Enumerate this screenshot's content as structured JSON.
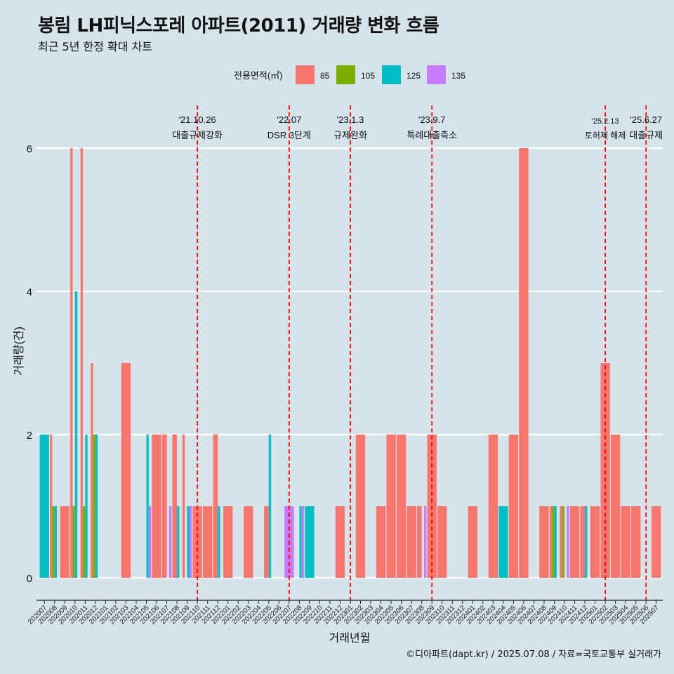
{
  "title": "봉림 LH피닉스포레 아파트(2011) 거래량 변화 흐름",
  "subtitle": "최근 5년 한정 확대 차트",
  "caption": "©디아파트(dapt.kr) / 2025.07.08 / 자료=국토교통부 실거래가",
  "colors": {
    "background": "#d6e3ea",
    "grid": "#ffffff",
    "event_line": "#ff0000",
    "85": "#f8766d",
    "105": "#7cae00",
    "125": "#00bfc4",
    "135": "#c77cff"
  },
  "chart_data": {
    "type": "bar",
    "title": "봉림 LH피닉스포레 아파트(2011) 거래량 변화 흐름",
    "xlabel": "거래년월",
    "ylabel": "거래량(건)",
    "ylim": [
      0,
      6
    ],
    "yticks": [
      0,
      2,
      4,
      6
    ],
    "legend_title": "전용면적(㎡)",
    "legend_position": "top",
    "series": [
      {
        "name": "85",
        "color": "#f8766d"
      },
      {
        "name": "105",
        "color": "#7cae00"
      },
      {
        "name": "125",
        "color": "#00bfc4"
      },
      {
        "name": "135",
        "color": "#c77cff"
      }
    ],
    "categories": [
      "202007",
      "202008",
      "202009",
      "202010",
      "202011",
      "202012",
      "202101",
      "202102",
      "202103",
      "202104",
      "202105",
      "202106",
      "202107",
      "202108",
      "202109",
      "202110",
      "202111",
      "202112",
      "202201",
      "202202",
      "202203",
      "202204",
      "202205",
      "202206",
      "202207",
      "202208",
      "202209",
      "202210",
      "202211",
      "202212",
      "202301",
      "202302",
      "202303",
      "202304",
      "202305",
      "202306",
      "202307",
      "202308",
      "202309",
      "202310",
      "202311",
      "202312",
      "202401",
      "202402",
      "202403",
      "202404",
      "202405",
      "202406",
      "202407",
      "202408",
      "202409",
      "202410",
      "202411",
      "202412",
      "202501",
      "202502",
      "202503",
      "202504",
      "202505",
      "202506",
      "202507"
    ],
    "bars": [
      {
        "month": "202007",
        "segments": [
          {
            "area": "125",
            "value": 2
          }
        ]
      },
      {
        "month": "202008",
        "segments": [
          {
            "area": "85",
            "value": 2
          },
          {
            "area": "105",
            "value": 1
          },
          {
            "area": "125",
            "value": 1
          }
        ]
      },
      {
        "month": "202009",
        "segments": [
          {
            "area": "85",
            "value": 1
          }
        ]
      },
      {
        "month": "202010",
        "segments": [
          {
            "area": "85",
            "value": 6
          },
          {
            "area": "105",
            "value": 1
          },
          {
            "area": "125",
            "value": 4
          }
        ]
      },
      {
        "month": "202011",
        "segments": [
          {
            "area": "85",
            "value": 6
          },
          {
            "area": "105",
            "value": 1
          },
          {
            "area": "125",
            "value": 2
          }
        ]
      },
      {
        "month": "202012",
        "segments": [
          {
            "area": "85",
            "value": 3
          },
          {
            "area": "105",
            "value": 2
          },
          {
            "area": "125",
            "value": 2
          }
        ]
      },
      {
        "month": "202103",
        "segments": [
          {
            "area": "85",
            "value": 3
          }
        ]
      },
      {
        "month": "202105",
        "segments": [
          {
            "area": "125",
            "value": 2
          },
          {
            "area": "135",
            "value": 1
          }
        ]
      },
      {
        "month": "202106",
        "segments": [
          {
            "area": "85",
            "value": 2
          }
        ]
      },
      {
        "month": "202107",
        "segments": [
          {
            "area": "85",
            "value": 2
          },
          {
            "area": "135",
            "value": 1
          }
        ]
      },
      {
        "month": "202108",
        "segments": [
          {
            "area": "85",
            "value": 2
          },
          {
            "area": "125",
            "value": 1
          }
        ]
      },
      {
        "month": "202109",
        "segments": [
          {
            "area": "85",
            "value": 2
          },
          {
            "area": "125",
            "value": 1
          },
          {
            "area": "135",
            "value": 1
          }
        ]
      },
      {
        "month": "202110",
        "segments": [
          {
            "area": "85",
            "value": 1
          }
        ]
      },
      {
        "month": "202111",
        "segments": [
          {
            "area": "85",
            "value": 1
          }
        ]
      },
      {
        "month": "202112",
        "segments": [
          {
            "area": "85",
            "value": 2
          },
          {
            "area": "125",
            "value": 1
          }
        ]
      },
      {
        "month": "202201",
        "segments": [
          {
            "area": "85",
            "value": 1
          }
        ]
      },
      {
        "month": "202203",
        "segments": [
          {
            "area": "85",
            "value": 1
          }
        ]
      },
      {
        "month": "202205",
        "segments": [
          {
            "area": "85",
            "value": 1
          },
          {
            "area": "125",
            "value": 2
          }
        ]
      },
      {
        "month": "202207",
        "segments": [
          {
            "area": "135",
            "value": 1
          }
        ]
      },
      {
        "month": "202208",
        "segments": [
          {
            "area": "125",
            "value": 1
          },
          {
            "area": "135",
            "value": 1
          }
        ]
      },
      {
        "month": "202209",
        "segments": [
          {
            "area": "125",
            "value": 1
          }
        ]
      },
      {
        "month": "202212",
        "segments": [
          {
            "area": "85",
            "value": 1
          }
        ]
      },
      {
        "month": "202302",
        "segments": [
          {
            "area": "85",
            "value": 2
          }
        ]
      },
      {
        "month": "202304",
        "segments": [
          {
            "area": "85",
            "value": 1
          }
        ]
      },
      {
        "month": "202305",
        "segments": [
          {
            "area": "85",
            "value": 2
          }
        ]
      },
      {
        "month": "202306",
        "segments": [
          {
            "area": "85",
            "value": 2
          }
        ]
      },
      {
        "month": "202307",
        "segments": [
          {
            "area": "85",
            "value": 1
          }
        ]
      },
      {
        "month": "202308",
        "segments": [
          {
            "area": "85",
            "value": 1
          },
          {
            "area": "135",
            "value": 1
          }
        ]
      },
      {
        "month": "202309",
        "segments": [
          {
            "area": "85",
            "value": 2
          }
        ]
      },
      {
        "month": "202310",
        "segments": [
          {
            "area": "85",
            "value": 1
          }
        ]
      },
      {
        "month": "202401",
        "segments": [
          {
            "area": "85",
            "value": 1
          }
        ]
      },
      {
        "month": "202403",
        "segments": [
          {
            "area": "85",
            "value": 2
          }
        ]
      },
      {
        "month": "202404",
        "segments": [
          {
            "area": "125",
            "value": 1
          }
        ]
      },
      {
        "month": "202405",
        "segments": [
          {
            "area": "85",
            "value": 2
          }
        ]
      },
      {
        "month": "202406",
        "segments": [
          {
            "area": "85",
            "value": 6
          }
        ]
      },
      {
        "month": "202408",
        "segments": [
          {
            "area": "85",
            "value": 1
          }
        ]
      },
      {
        "month": "202409",
        "segments": [
          {
            "area": "85",
            "value": 1
          },
          {
            "area": "105",
            "value": 1
          },
          {
            "area": "125",
            "value": 1
          }
        ]
      },
      {
        "month": "202410",
        "segments": [
          {
            "area": "85",
            "value": 1
          },
          {
            "area": "105",
            "value": 1
          },
          {
            "area": "135",
            "value": 1
          }
        ]
      },
      {
        "month": "202411",
        "segments": [
          {
            "area": "85",
            "value": 1
          }
        ]
      },
      {
        "month": "202412",
        "segments": [
          {
            "area": "85",
            "value": 1
          },
          {
            "area": "125",
            "value": 1
          }
        ]
      },
      {
        "month": "202501",
        "segments": [
          {
            "area": "85",
            "value": 1
          }
        ]
      },
      {
        "month": "202502",
        "segments": [
          {
            "area": "85",
            "value": 3
          }
        ]
      },
      {
        "month": "202503",
        "segments": [
          {
            "area": "85",
            "value": 2
          }
        ]
      },
      {
        "month": "202504",
        "segments": [
          {
            "area": "85",
            "value": 1
          }
        ]
      },
      {
        "month": "202505",
        "segments": [
          {
            "area": "85",
            "value": 1
          }
        ]
      },
      {
        "month": "202507",
        "segments": [
          {
            "area": "85",
            "value": 1
          }
        ]
      }
    ],
    "events": [
      {
        "month": "202110",
        "date": "'21.10.26",
        "label": "대출규제강화"
      },
      {
        "month": "202207",
        "date": "'22.07",
        "label": "DSR 3단계"
      },
      {
        "month": "202301",
        "date": "'23.1.3",
        "label": "규제완화"
      },
      {
        "month": "202309",
        "date": "'23.9.7",
        "label": "특례대출축소"
      },
      {
        "month": "202502",
        "date": "'25.2.13",
        "label": "토허제 해제"
      },
      {
        "month": "202506",
        "date": "'25.6.27",
        "label": "대출규제"
      }
    ]
  }
}
